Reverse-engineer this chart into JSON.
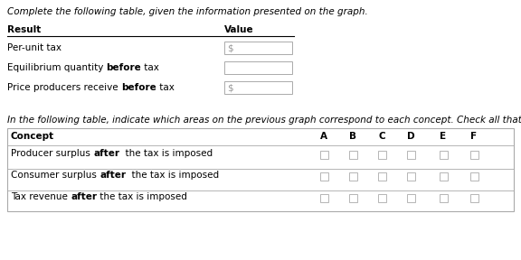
{
  "title_text": "Complete the following table, given the information presented on the graph.",
  "t1_result_header": "Result",
  "t1_value_header": "Value",
  "t1_rows": [
    {
      "pre": "Per-unit tax",
      "bold": "",
      "post": "",
      "has_dollar": true
    },
    {
      "pre": "Equilibrium quantity ",
      "bold": "before",
      "post": " tax",
      "has_dollar": false
    },
    {
      "pre": "Price producers receive ",
      "bold": "before",
      "post": " tax",
      "has_dollar": true
    }
  ],
  "sep_text": "In the following table, indicate which areas on the previous graph correspond to each concept. Check all that apply.",
  "t2_headers": [
    "Concept",
    "A",
    "B",
    "C",
    "D",
    "E",
    "F"
  ],
  "t2_rows": [
    {
      "pre": "Producer surplus ",
      "bold": "after",
      "post": "  the tax is imposed"
    },
    {
      "pre": "Consumer surplus ",
      "bold": "after",
      "post": "  the tax is imposed"
    },
    {
      "pre": "Tax revenue ",
      "bold": "after",
      "post": " the tax is imposed"
    }
  ],
  "bg_color": "#ffffff",
  "text_color": "#000000",
  "gray_color": "#999999",
  "box_edge_color": "#aaaaaa",
  "fs_main": 7.5,
  "fs_title": 7.5
}
